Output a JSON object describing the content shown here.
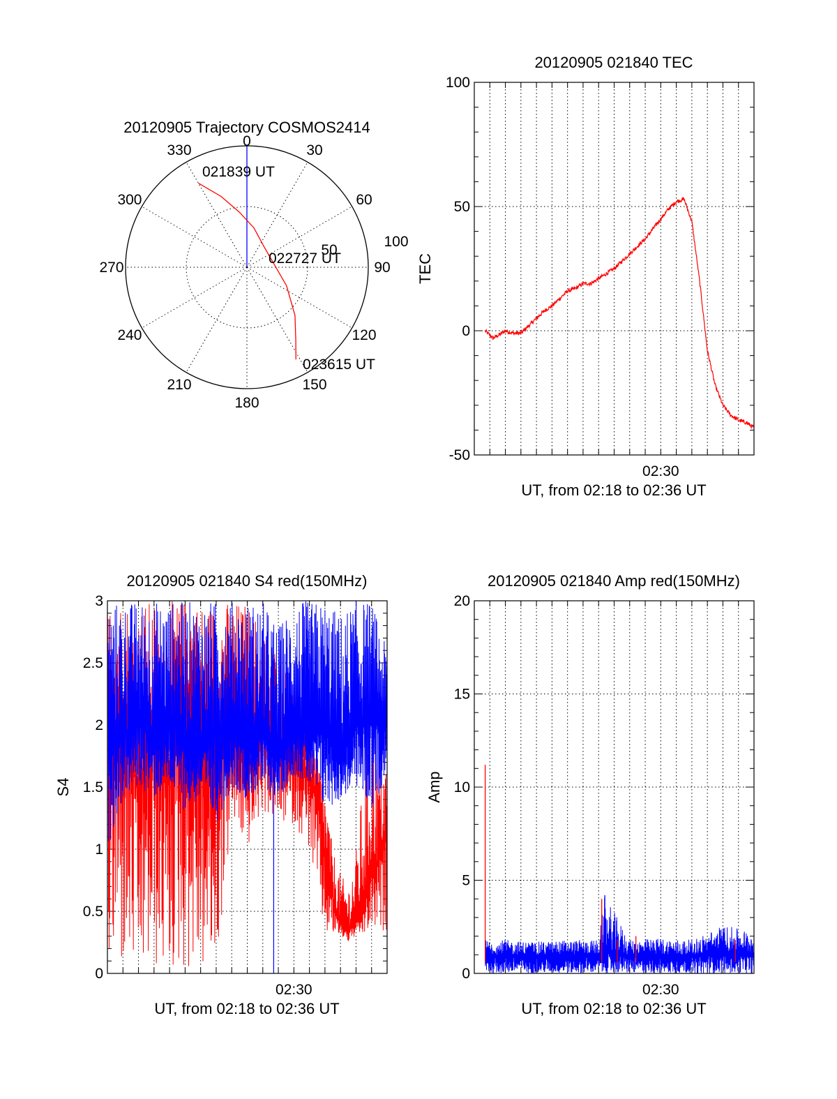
{
  "colors": {
    "red_series": "#ff0000",
    "blue_series": "#0000ff",
    "axes": "#000000"
  },
  "chart_data": [
    {
      "type": "polar",
      "title": "20120905 Trajectory COSMOS2414",
      "angle_labels": [
        "0",
        "30",
        "60",
        "90",
        "120",
        "150",
        "180",
        "210",
        "240",
        "270",
        "300",
        "330"
      ],
      "radius_labels": [
        "50",
        "100"
      ],
      "radial_axis": "zenith angle, center 0 to rim 100",
      "trajectory": {
        "points": [
          [
            330,
            80
          ],
          [
            340,
            62
          ],
          [
            352,
            46
          ],
          [
            10,
            33
          ],
          [
            40,
            22
          ],
          [
            80,
            22
          ],
          [
            115,
            36
          ],
          [
            135,
            56
          ],
          [
            146,
            72
          ],
          [
            152,
            86
          ]
        ],
        "annotations": [
          {
            "text": "021839 UT",
            "at": "start"
          },
          {
            "text": "022727 UT",
            "at": "middle"
          },
          {
            "text": "023615 UT",
            "at": "end"
          }
        ]
      }
    },
    {
      "type": "line",
      "title": "20120905 021840 TEC",
      "xlabel": "UT, from 02:18 to 02:36 UT",
      "ylabel": "TEC",
      "xlim": [
        0,
        18
      ],
      "x_units": "minutes after 02:18",
      "x_tick_labels": [
        {
          "x": 12,
          "text": "02:30"
        }
      ],
      "ylim": [
        -50,
        100
      ],
      "y_ticks": [
        "-50",
        "0",
        "50",
        "100"
      ],
      "grid": true,
      "series": [
        {
          "color": "#ff0000",
          "x": [
            0.7,
            1.2,
            1.5,
            2,
            2.5,
            3,
            3.5,
            4,
            4.5,
            5,
            5.5,
            6,
            6.5,
            7,
            7.5,
            8,
            8.5,
            9,
            9.5,
            10,
            10.5,
            11,
            11.5,
            12,
            12.5,
            13,
            13.5,
            14,
            14.5,
            15,
            15.5,
            16,
            16.5,
            17,
            17.5,
            18
          ],
          "values": [
            0,
            -3,
            -2,
            0,
            -1,
            -1,
            2,
            5,
            8,
            10,
            13,
            16,
            17,
            19,
            19,
            21,
            23,
            25,
            28,
            31,
            34,
            37,
            41,
            45,
            49,
            52,
            53,
            44,
            20,
            -8,
            -22,
            -30,
            -34,
            -36,
            -37,
            -39
          ]
        }
      ]
    },
    {
      "type": "line",
      "title": "20120905 021840 S4 red(150MHz)",
      "xlabel": "UT, from 02:18 to 02:36 UT",
      "ylabel": "S4",
      "xlim": [
        0,
        18
      ],
      "x_units": "minutes after 02:18",
      "x_tick_labels": [
        {
          "x": 12,
          "text": "02:30"
        }
      ],
      "ylim": [
        0,
        3
      ],
      "y_ticks": [
        "0",
        "0.5",
        "1",
        "1.5",
        "2",
        "2.5",
        "3"
      ],
      "grid": true,
      "series": [
        {
          "color": "#ff0000",
          "x": [
            0,
            1,
            2,
            3,
            4,
            5,
            6,
            7,
            8,
            9,
            10,
            11,
            12,
            13,
            13.5,
            14,
            14.5,
            15,
            15.5,
            16,
            16.5,
            17,
            17.5,
            18
          ],
          "values": [
            1.8,
            2.2,
            1.4,
            2.0,
            1.6,
            2.3,
            1.8,
            1.7,
            2.0,
            1.6,
            1.9,
            1.8,
            1.7,
            1.6,
            1.4,
            0.9,
            0.6,
            0.4,
            0.35,
            0.4,
            0.5,
            0.8,
            0.9,
            1.1
          ],
          "envelope_low": [
            0,
            0,
            0,
            0,
            0,
            0,
            0,
            0,
            1.2,
            1.0,
            1.3,
            1.2,
            1.2,
            1.0,
            0.6,
            0.3,
            0.3,
            0.3,
            0.25,
            0.3,
            0.3,
            0.35,
            0.3,
            0.35
          ],
          "envelope_high": [
            3,
            3,
            3,
            3,
            3,
            3,
            3,
            3,
            3,
            3,
            2.8,
            2.6,
            2.3,
            2.0,
            1.8,
            1.5,
            1.0,
            0.8,
            0.7,
            1.0,
            1.6,
            2.0,
            1.8,
            1.7
          ]
        },
        {
          "color": "#0000ff",
          "x": [
            0,
            1,
            2,
            3,
            4,
            5,
            6,
            7,
            8,
            9,
            10,
            11,
            12,
            13,
            14,
            15,
            16,
            17,
            18
          ],
          "values": [
            1.8,
            1.9,
            2.0,
            1.9,
            2.0,
            1.9,
            1.8,
            1.9,
            2.0,
            1.8,
            1.9,
            1.7,
            2.0,
            1.9,
            2.0,
            1.7,
            2.0,
            2.1,
            2.0
          ],
          "envelope_low": [
            1.0,
            1.4,
            1.5,
            1.4,
            1.5,
            1.3,
            1.4,
            1.2,
            1.5,
            1.4,
            1.5,
            1.4,
            1.6,
            1.5,
            1.3,
            1.4,
            1.5,
            1.3,
            1.6
          ],
          "envelope_high": [
            3,
            3,
            3,
            3,
            3,
            3,
            3,
            3,
            3,
            3,
            3,
            2.8,
            3,
            3,
            3,
            2.9,
            3,
            3,
            2.6
          ]
        }
      ]
    },
    {
      "type": "line",
      "title": "20120905 021840 Amp red(150MHz)",
      "xlabel": "UT, from 02:18 to 02:36 UT",
      "ylabel": "Amp",
      "xlim": [
        0,
        18
      ],
      "x_units": "minutes after 02:18",
      "x_tick_labels": [
        {
          "x": 12,
          "text": "02:30"
        }
      ],
      "ylim": [
        0,
        20
      ],
      "y_ticks": [
        "0",
        "5",
        "10",
        "15",
        "20"
      ],
      "grid": true,
      "series": [
        {
          "color": "#ff0000",
          "x": [
            0.7,
            8.2,
            9.2,
            10.4,
            16.8
          ],
          "values": [
            11.2,
            4.0,
            1.8,
            2.0,
            1.8
          ]
        },
        {
          "color": "#0000ff",
          "x": [
            0.7,
            2,
            4,
            6,
            8,
            8.4,
            10,
            12,
            14,
            15,
            16,
            17,
            18
          ],
          "values": [
            1.0,
            1.0,
            1.0,
            1.0,
            1.0,
            1.2,
            1.0,
            1.0,
            1.0,
            1.1,
            1.2,
            1.2,
            1.1
          ],
          "envelope_high": [
            1.8,
            1.8,
            1.7,
            1.8,
            1.8,
            4.2,
            1.8,
            1.9,
            1.8,
            2.2,
            2.6,
            2.4,
            2.3
          ],
          "envelope_low": [
            0,
            0,
            0,
            0,
            0,
            0,
            0,
            0,
            0,
            0,
            0,
            0,
            0
          ]
        }
      ]
    }
  ]
}
